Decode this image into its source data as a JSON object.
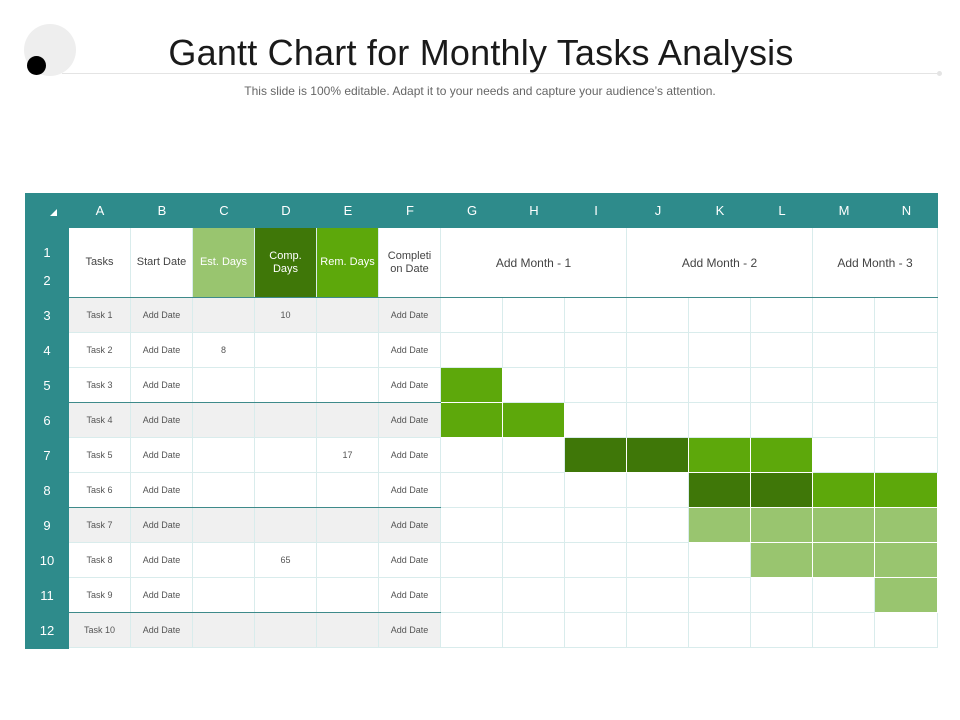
{
  "page": {
    "title": "Gantt Chart for Monthly Tasks Analysis",
    "subtitle": "This slide is 100% editable. Adapt it to your needs and capture your audience’s attention."
  },
  "colors": {
    "header_teal": "#2e8b8b",
    "shade_light": "#99c56f",
    "shade_dark": "#3f7708",
    "shade_mid": "#5da80b",
    "row_shade": "#f0f0f0"
  },
  "sheet": {
    "columns": [
      "A",
      "B",
      "C",
      "D",
      "E",
      "F",
      "G",
      "H",
      "I",
      "J",
      "K",
      "L",
      "M",
      "N"
    ],
    "rows": [
      "1",
      "2",
      "3",
      "4",
      "5",
      "6",
      "7",
      "8",
      "9",
      "10",
      "11",
      "12"
    ],
    "headers": {
      "tasks": "Tasks",
      "start_date": "Start Date",
      "est_days": "Est. Days",
      "comp_days": "Comp. Days",
      "rem_days": "Rem. Days",
      "completion_date": "Completi on Date"
    },
    "months": [
      "Add Month - 1",
      "Add Month - 2",
      "Add Month - 3"
    ],
    "tasks": [
      {
        "name": "Task 1",
        "start": "Add Date",
        "est": "",
        "comp": "10",
        "rem": "",
        "end": "Add Date",
        "bars": [
          0,
          0,
          0,
          0,
          0,
          0,
          0,
          0
        ]
      },
      {
        "name": "Task 2",
        "start": "Add Date",
        "est": "8",
        "comp": "",
        "rem": "",
        "end": "Add Date",
        "bars": [
          0,
          0,
          0,
          0,
          0,
          0,
          0,
          0
        ]
      },
      {
        "name": "Task 3",
        "start": "Add Date",
        "est": "",
        "comp": "",
        "rem": "",
        "end": "Add Date",
        "bars": [
          3,
          0,
          0,
          0,
          0,
          0,
          0,
          0
        ]
      },
      {
        "name": "Task 4",
        "start": "Add Date",
        "est": "",
        "comp": "",
        "rem": "",
        "end": "Add Date",
        "bars": [
          3,
          3,
          0,
          0,
          0,
          0,
          0,
          0
        ]
      },
      {
        "name": "Task 5",
        "start": "Add Date",
        "est": "",
        "comp": "",
        "rem": "17",
        "end": "Add Date",
        "bars": [
          0,
          0,
          2,
          2,
          3,
          3,
          0,
          0
        ]
      },
      {
        "name": "Task 6",
        "start": "Add Date",
        "est": "",
        "comp": "",
        "rem": "",
        "end": "Add Date",
        "bars": [
          0,
          0,
          0,
          0,
          2,
          2,
          3,
          3
        ]
      },
      {
        "name": "Task 7",
        "start": "Add Date",
        "est": "",
        "comp": "",
        "rem": "",
        "end": "Add Date",
        "bars": [
          0,
          0,
          0,
          0,
          1,
          1,
          1,
          1
        ]
      },
      {
        "name": "Task 8",
        "start": "Add Date",
        "est": "",
        "comp": "65",
        "rem": "",
        "end": "Add Date",
        "bars": [
          0,
          0,
          0,
          0,
          0,
          1,
          1,
          1
        ]
      },
      {
        "name": "Task 9",
        "start": "Add Date",
        "est": "",
        "comp": "",
        "rem": "",
        "end": "Add Date",
        "bars": [
          0,
          0,
          0,
          0,
          0,
          0,
          0,
          1
        ]
      },
      {
        "name": "Task 10",
        "start": "Add Date",
        "est": "",
        "comp": "",
        "rem": "",
        "end": "Add Date",
        "bars": [
          0,
          0,
          0,
          0,
          0,
          0,
          0,
          0
        ]
      }
    ]
  }
}
